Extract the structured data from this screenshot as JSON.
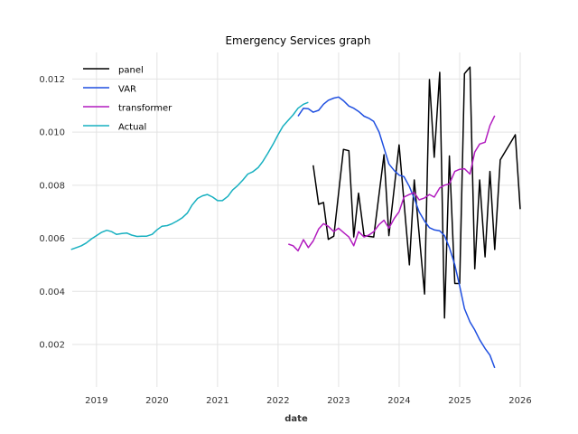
{
  "chart_data": {
    "type": "line",
    "title": "Emergency Services graph",
    "xlabel": "date",
    "ylabel": "",
    "xlim": [
      2018.6,
      2026.0
    ],
    "ylim": [
      0.0004,
      0.013
    ],
    "x_ticks": [
      2019,
      2020,
      2021,
      2022,
      2023,
      2024,
      2025,
      2026
    ],
    "x_tick_labels": [
      "2019",
      "2020",
      "2021",
      "2022",
      "2023",
      "2024",
      "2025",
      "2026"
    ],
    "y_ticks": [
      0.002,
      0.004,
      0.006,
      0.008,
      0.01,
      0.012
    ],
    "y_tick_labels": [
      "0.002",
      "0.004",
      "0.006",
      "0.008",
      "0.010",
      "0.012"
    ],
    "grid": true,
    "legend_position": "top-left",
    "series": [
      {
        "name": "panel",
        "color": "#000000",
        "points": [
          [
            2022.58,
            0.00875
          ],
          [
            2022.67,
            0.00728
          ],
          [
            2022.75,
            0.00735
          ],
          [
            2022.83,
            0.00596
          ],
          [
            2022.92,
            0.00608
          ],
          [
            2023.08,
            0.00935
          ],
          [
            2023.17,
            0.0093
          ],
          [
            2023.25,
            0.00605
          ],
          [
            2023.33,
            0.0077
          ],
          [
            2023.42,
            0.0061
          ],
          [
            2023.58,
            0.00605
          ],
          [
            2023.75,
            0.00915
          ],
          [
            2023.83,
            0.0061
          ],
          [
            2024.0,
            0.00952
          ],
          [
            2024.17,
            0.005
          ],
          [
            2024.25,
            0.0082
          ],
          [
            2024.42,
            0.0039
          ],
          [
            2024.5,
            0.01198
          ],
          [
            2024.58,
            0.00905
          ],
          [
            2024.67,
            0.01225
          ],
          [
            2024.75,
            0.003
          ],
          [
            2024.83,
            0.0091
          ],
          [
            2024.92,
            0.0043
          ],
          [
            2025.0,
            0.0043
          ],
          [
            2025.08,
            0.0122
          ],
          [
            2025.17,
            0.01245
          ],
          [
            2025.25,
            0.00485
          ],
          [
            2025.33,
            0.0082
          ],
          [
            2025.42,
            0.0053
          ],
          [
            2025.5,
            0.00852
          ],
          [
            2025.58,
            0.00558
          ],
          [
            2025.67,
            0.00895
          ],
          [
            2025.92,
            0.0099
          ],
          [
            2026.0,
            0.0071
          ]
        ]
      },
      {
        "name": "VAR",
        "color": "#1f4fe0",
        "points": [
          [
            2022.33,
            0.0106
          ],
          [
            2022.42,
            0.0109
          ],
          [
            2022.5,
            0.01088
          ],
          [
            2022.58,
            0.01075
          ],
          [
            2022.67,
            0.01082
          ],
          [
            2022.75,
            0.01105
          ],
          [
            2022.83,
            0.0112
          ],
          [
            2022.92,
            0.01128
          ],
          [
            2023.0,
            0.01132
          ],
          [
            2023.08,
            0.01118
          ],
          [
            2023.17,
            0.01098
          ],
          [
            2023.25,
            0.0109
          ],
          [
            2023.33,
            0.01078
          ],
          [
            2023.42,
            0.0106
          ],
          [
            2023.5,
            0.01052
          ],
          [
            2023.58,
            0.0104
          ],
          [
            2023.67,
            0.01
          ],
          [
            2023.75,
            0.0094
          ],
          [
            2023.83,
            0.0088
          ],
          [
            2023.92,
            0.00855
          ],
          [
            2024.0,
            0.00838
          ],
          [
            2024.08,
            0.00832
          ],
          [
            2024.17,
            0.00795
          ],
          [
            2024.25,
            0.0075
          ],
          [
            2024.33,
            0.007
          ],
          [
            2024.42,
            0.00665
          ],
          [
            2024.5,
            0.0064
          ],
          [
            2024.58,
            0.00632
          ],
          [
            2024.67,
            0.00628
          ],
          [
            2024.75,
            0.0061
          ],
          [
            2024.83,
            0.00565
          ],
          [
            2024.92,
            0.005
          ],
          [
            2025.0,
            0.0042
          ],
          [
            2025.08,
            0.00335
          ],
          [
            2025.17,
            0.00285
          ],
          [
            2025.25,
            0.00255
          ],
          [
            2025.33,
            0.00218
          ],
          [
            2025.42,
            0.00185
          ],
          [
            2025.5,
            0.0016
          ],
          [
            2025.58,
            0.00112
          ]
        ]
      },
      {
        "name": "transformer",
        "color": "#b21cbf",
        "points": [
          [
            2022.17,
            0.00578
          ],
          [
            2022.25,
            0.00572
          ],
          [
            2022.33,
            0.00553
          ],
          [
            2022.42,
            0.00595
          ],
          [
            2022.5,
            0.00565
          ],
          [
            2022.58,
            0.0059
          ],
          [
            2022.67,
            0.00635
          ],
          [
            2022.75,
            0.00655
          ],
          [
            2022.83,
            0.00645
          ],
          [
            2022.92,
            0.00625
          ],
          [
            2023.0,
            0.00638
          ],
          [
            2023.08,
            0.00622
          ],
          [
            2023.17,
            0.00605
          ],
          [
            2023.25,
            0.00572
          ],
          [
            2023.33,
            0.00625
          ],
          [
            2023.42,
            0.00605
          ],
          [
            2023.5,
            0.00612
          ],
          [
            2023.58,
            0.00625
          ],
          [
            2023.67,
            0.00652
          ],
          [
            2023.75,
            0.00668
          ],
          [
            2023.83,
            0.00638
          ],
          [
            2023.92,
            0.00675
          ],
          [
            2024.0,
            0.007
          ],
          [
            2024.08,
            0.00755
          ],
          [
            2024.17,
            0.00765
          ],
          [
            2024.25,
            0.00772
          ],
          [
            2024.33,
            0.00745
          ],
          [
            2024.42,
            0.00752
          ],
          [
            2024.5,
            0.00765
          ],
          [
            2024.58,
            0.00755
          ],
          [
            2024.67,
            0.0079
          ],
          [
            2024.75,
            0.008
          ],
          [
            2024.83,
            0.00805
          ],
          [
            2024.92,
            0.00852
          ],
          [
            2025.0,
            0.0086
          ],
          [
            2025.08,
            0.00862
          ],
          [
            2025.17,
            0.00842
          ],
          [
            2025.25,
            0.00925
          ],
          [
            2025.33,
            0.00955
          ],
          [
            2025.42,
            0.00962
          ],
          [
            2025.5,
            0.01025
          ],
          [
            2025.58,
            0.01062
          ]
        ]
      },
      {
        "name": "Actual",
        "color": "#17b0c0",
        "points": [
          [
            2018.58,
            0.00558
          ],
          [
            2018.67,
            0.00565
          ],
          [
            2018.75,
            0.00572
          ],
          [
            2018.83,
            0.00582
          ],
          [
            2018.92,
            0.00598
          ],
          [
            2019.0,
            0.0061
          ],
          [
            2019.08,
            0.00622
          ],
          [
            2019.17,
            0.0063
          ],
          [
            2019.25,
            0.00625
          ],
          [
            2019.33,
            0.00615
          ],
          [
            2019.42,
            0.00618
          ],
          [
            2019.5,
            0.0062
          ],
          [
            2019.58,
            0.00612
          ],
          [
            2019.67,
            0.00607
          ],
          [
            2019.75,
            0.00608
          ],
          [
            2019.83,
            0.00608
          ],
          [
            2019.92,
            0.00615
          ],
          [
            2020.0,
            0.00632
          ],
          [
            2020.08,
            0.00645
          ],
          [
            2020.17,
            0.00648
          ],
          [
            2020.25,
            0.00655
          ],
          [
            2020.33,
            0.00665
          ],
          [
            2020.42,
            0.00678
          ],
          [
            2020.5,
            0.00695
          ],
          [
            2020.58,
            0.00725
          ],
          [
            2020.67,
            0.0075
          ],
          [
            2020.75,
            0.0076
          ],
          [
            2020.83,
            0.00765
          ],
          [
            2020.92,
            0.00755
          ],
          [
            2021.0,
            0.00742
          ],
          [
            2021.08,
            0.00742
          ],
          [
            2021.17,
            0.00758
          ],
          [
            2021.25,
            0.00782
          ],
          [
            2021.33,
            0.00798
          ],
          [
            2021.42,
            0.0082
          ],
          [
            2021.5,
            0.00842
          ],
          [
            2021.58,
            0.0085
          ],
          [
            2021.67,
            0.00866
          ],
          [
            2021.75,
            0.0089
          ],
          [
            2021.83,
            0.0092
          ],
          [
            2021.92,
            0.00955
          ],
          [
            2022.0,
            0.0099
          ],
          [
            2022.08,
            0.01022
          ],
          [
            2022.17,
            0.01045
          ],
          [
            2022.25,
            0.01065
          ],
          [
            2022.33,
            0.0109
          ],
          [
            2022.42,
            0.01105
          ],
          [
            2022.5,
            0.01112
          ]
        ]
      }
    ]
  }
}
